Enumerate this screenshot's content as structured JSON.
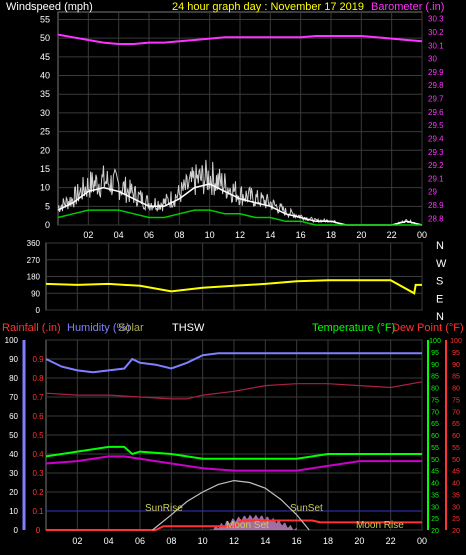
{
  "header": {
    "left_label": "Windspeed (mph)",
    "title": "24 hour graph day : November 17 2019",
    "right_label": "Barometer (.in)"
  },
  "colors": {
    "background": "#000000",
    "grid": "#3a3a3a",
    "wind": "#ffffff",
    "gust": "#d0d0d0",
    "wind_avg": "#00cc00",
    "barometer": "#ff33ff",
    "direction": "#ffff00",
    "humidity": "#8080ff",
    "dew_point": "#aa2244",
    "temperature": "#00ff00",
    "temperature_dark": "#cc00cc",
    "rain": "#ff3333",
    "sun": "#c0c0c0",
    "uv": "#cc88cc"
  },
  "chart_data": [
    {
      "type": "line",
      "name": "wind-baro",
      "x_ticks": [
        "02",
        "04",
        "06",
        "08",
        "10",
        "12",
        "14",
        "16",
        "18",
        "20",
        "22",
        "00"
      ],
      "y_left": {
        "ticks": [
          0,
          5,
          10,
          15,
          20,
          25,
          30,
          35,
          40,
          45,
          50,
          55
        ],
        "ylim": [
          0,
          57
        ]
      },
      "y_right": {
        "ticks": [
          "28.8",
          "28.9",
          "29",
          "29.1",
          "29.2",
          "29.3",
          "29.4",
          "29.5",
          "29.6",
          "29.7",
          "29.8",
          "29.9",
          "30",
          "30.1",
          "30.2",
          "30.3"
        ],
        "ylim": [
          28.75,
          30.35
        ]
      },
      "series": [
        {
          "color": "#ff33ff",
          "axis": "right",
          "x": [
            0,
            1,
            2,
            3,
            4,
            5,
            6,
            7,
            8,
            9,
            10,
            11,
            12,
            13,
            14,
            15,
            16,
            17,
            18,
            19,
            20,
            21,
            22,
            23,
            24
          ],
          "values": [
            30.18,
            30.16,
            30.14,
            30.12,
            30.11,
            30.11,
            30.12,
            30.12,
            30.13,
            30.14,
            30.15,
            30.16,
            30.16,
            30.16,
            30.16,
            30.16,
            30.16,
            30.17,
            30.17,
            30.17,
            30.17,
            30.16,
            30.15,
            30.14,
            30.13
          ]
        },
        {
          "color": "#ffffff",
          "axis": "left",
          "x": [
            0,
            1,
            2,
            3,
            4,
            5,
            6,
            7,
            8,
            9,
            10,
            11,
            12,
            13,
            14,
            15,
            16,
            17,
            18,
            19,
            20,
            21,
            22,
            23,
            24
          ],
          "values": [
            4,
            6,
            9,
            10,
            9,
            7,
            5,
            5,
            7,
            10,
            11,
            9,
            7,
            6,
            5,
            3,
            2,
            1,
            1,
            0,
            0,
            0,
            0,
            1,
            0
          ]
        },
        {
          "color": "#00cc00",
          "axis": "left",
          "x": [
            0,
            1,
            2,
            3,
            4,
            5,
            6,
            7,
            8,
            9,
            10,
            11,
            12,
            13,
            14,
            15,
            16,
            17,
            18,
            19,
            20,
            21,
            22,
            23,
            24
          ],
          "values": [
            2,
            3,
            4,
            4,
            4,
            3,
            2,
            2,
            3,
            4,
            4,
            3,
            3,
            2,
            2,
            1,
            1,
            0,
            0,
            0,
            0,
            0,
            0,
            0,
            0
          ]
        }
      ]
    },
    {
      "type": "line",
      "name": "wind-direction",
      "y_left": {
        "ticks": [
          0,
          90,
          180,
          270,
          360
        ],
        "ylim": [
          0,
          360
        ]
      },
      "y_right_labels": [
        "N",
        "W",
        "S",
        "E",
        "N"
      ],
      "series": [
        {
          "color": "#ffff00",
          "x": [
            0,
            2,
            4,
            6,
            8,
            10,
            12,
            14,
            16,
            18,
            20,
            22,
            23.5,
            23.6,
            24
          ],
          "values": [
            140,
            135,
            140,
            130,
            100,
            120,
            130,
            140,
            155,
            160,
            160,
            160,
            90,
            135,
            135
          ]
        }
      ]
    },
    {
      "type": "line",
      "name": "rain-humidity-temp",
      "labels": {
        "rainfall": "Rainfall (.in)",
        "humidity": "Humidity (%)",
        "solar": "Solar",
        "thsw": "THSW",
        "temperature": "Temperature (°F)",
        "dew_point": "Dew Point (°F)"
      },
      "annotations": [
        "SunRise",
        "SunSet",
        "Moon Set",
        "Moon Rise"
      ],
      "x_ticks": [
        "02",
        "04",
        "06",
        "08",
        "10",
        "12",
        "14",
        "16",
        "18",
        "20",
        "22",
        "00"
      ],
      "y_rain": {
        "ticks": [
          "0",
          "0.1",
          "0.2",
          "0.3",
          "0.4",
          "0.5",
          "0.6",
          "0.7",
          "0.8",
          "0.9"
        ],
        "ylim": [
          0,
          1
        ]
      },
      "y_hum": {
        "ticks": [
          0,
          10,
          20,
          30,
          40,
          50,
          60,
          70,
          80,
          90,
          100
        ],
        "ylim": [
          0,
          100
        ]
      },
      "y_temp": {
        "ticks": [
          20,
          25,
          30,
          35,
          40,
          45,
          50,
          55,
          60,
          65,
          70,
          75,
          80,
          85,
          90,
          95,
          100
        ],
        "ylim": [
          20,
          100
        ]
      },
      "series": [
        {
          "color": "#8080ff",
          "axis": "hum",
          "x": [
            0,
            1,
            2,
            3,
            4,
            5,
            5.5,
            6,
            7,
            8,
            9,
            10,
            11,
            12,
            13,
            14,
            15,
            16,
            17,
            18,
            20,
            22,
            24
          ],
          "values": [
            90,
            86,
            84,
            83,
            84,
            85,
            90,
            88,
            87,
            85,
            88,
            92,
            93,
            93,
            93,
            93,
            93,
            93,
            93,
            93,
            93,
            93,
            93
          ]
        },
        {
          "color": "#aa2244",
          "axis": "rain",
          "x": [
            0,
            2,
            4,
            6,
            8,
            9,
            10,
            12,
            14,
            16,
            18,
            20,
            22,
            24
          ],
          "values": [
            0.72,
            0.71,
            0.71,
            0.7,
            0.69,
            0.69,
            0.71,
            0.73,
            0.76,
            0.77,
            0.77,
            0.76,
            0.75,
            0.78
          ]
        },
        {
          "color": "#cc00cc",
          "axis": "temp",
          "x": [
            0,
            2,
            4,
            5,
            6,
            8,
            10,
            12,
            14,
            16,
            18,
            20,
            22,
            24
          ],
          "values": [
            48,
            49,
            51,
            51,
            50,
            48,
            46,
            45,
            45,
            45,
            47,
            49,
            49,
            49
          ]
        },
        {
          "color": "#00ff00",
          "axis": "temp",
          "x": [
            0,
            2,
            4,
            5,
            5.5,
            6,
            8,
            10,
            12,
            14,
            16,
            18,
            20,
            22,
            24
          ],
          "values": [
            51,
            53,
            55,
            55,
            52,
            53,
            52,
            50,
            50,
            50,
            50,
            52,
            52,
            52,
            52
          ]
        },
        {
          "color": "#ff3333",
          "axis": "rain",
          "x": [
            0,
            7,
            7.5,
            12,
            12.5,
            17,
            17.5,
            24
          ],
          "values": [
            0,
            0,
            0.02,
            0.02,
            0.05,
            0.05,
            0.04,
            0.04
          ]
        },
        {
          "color": "#c0c0c0",
          "axis": "hum",
          "x": [
            6.8,
            8,
            9,
            10,
            11,
            12,
            13,
            14,
            15,
            16,
            16.8
          ],
          "values": [
            0,
            8,
            15,
            20,
            24,
            26,
            25,
            22,
            16,
            8,
            0
          ]
        }
      ]
    }
  ]
}
